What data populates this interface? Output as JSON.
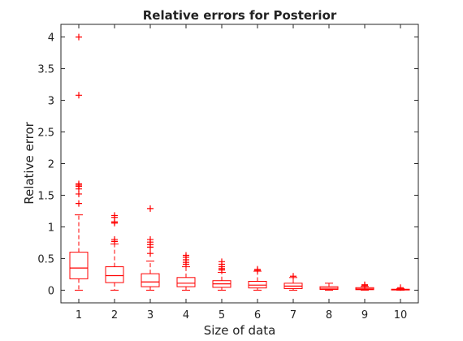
{
  "chart_data": {
    "type": "boxplot",
    "title": "Relative errors for Posterior",
    "xlabel": "Size of data",
    "ylabel": "Relative error",
    "ylim": [
      -0.2,
      4.2
    ],
    "xlim": [
      0.5,
      10.5
    ],
    "y_ticks": [
      0,
      0.5,
      1,
      1.5,
      2,
      2.5,
      3,
      3.5,
      4
    ],
    "y_tick_labels": [
      "0",
      "0.5",
      "1",
      "1.5",
      "2",
      "2.5",
      "3",
      "3.5",
      "4"
    ],
    "categories": [
      "1",
      "2",
      "3",
      "4",
      "5",
      "6",
      "7",
      "8",
      "9",
      "10"
    ],
    "color": "#ff0000",
    "boxes": [
      {
        "x": 1,
        "min": 0.0,
        "q1": 0.18,
        "median": 0.35,
        "q3": 0.6,
        "max": 1.19,
        "outliers": [
          1.37,
          1.52,
          1.6,
          1.64,
          1.66,
          1.68,
          3.08,
          4.0
        ]
      },
      {
        "x": 2,
        "min": 0.0,
        "q1": 0.12,
        "median": 0.23,
        "q3": 0.37,
        "max": 0.73,
        "outliers": [
          0.77,
          0.8,
          1.06,
          1.08,
          1.15,
          1.18
        ]
      },
      {
        "x": 3,
        "min": 0.0,
        "q1": 0.055,
        "median": 0.13,
        "q3": 0.26,
        "max": 0.46,
        "outliers": [
          0.58,
          0.68,
          0.72,
          0.76,
          0.8,
          1.29
        ]
      },
      {
        "x": 4,
        "min": 0.0,
        "q1": 0.055,
        "median": 0.11,
        "q3": 0.2,
        "max": 0.37,
        "outliers": [
          0.41,
          0.44,
          0.48,
          0.52,
          0.55
        ]
      },
      {
        "x": 5,
        "min": 0.0,
        "q1": 0.045,
        "median": 0.1,
        "q3": 0.15,
        "max": 0.28,
        "outliers": [
          0.32,
          0.34,
          0.37,
          0.41,
          0.45
        ]
      },
      {
        "x": 6,
        "min": 0.0,
        "q1": 0.035,
        "median": 0.08,
        "q3": 0.14,
        "max": 0.3,
        "outliers": [
          0.31,
          0.33
        ]
      },
      {
        "x": 7,
        "min": 0.0,
        "q1": 0.025,
        "median": 0.065,
        "q3": 0.11,
        "max": 0.2,
        "outliers": [
          0.22
        ]
      },
      {
        "x": 8,
        "min": 0.0,
        "q1": 0.012,
        "median": 0.03,
        "q3": 0.055,
        "max": 0.11,
        "outliers": []
      },
      {
        "x": 9,
        "min": 0.0,
        "q1": 0.008,
        "median": 0.02,
        "q3": 0.04,
        "max": 0.06,
        "outliers": [
          0.07,
          0.085
        ]
      },
      {
        "x": 10,
        "min": 0.0,
        "q1": 0.003,
        "median": 0.008,
        "q3": 0.015,
        "max": 0.025,
        "outliers": [
          0.04
        ]
      }
    ]
  }
}
